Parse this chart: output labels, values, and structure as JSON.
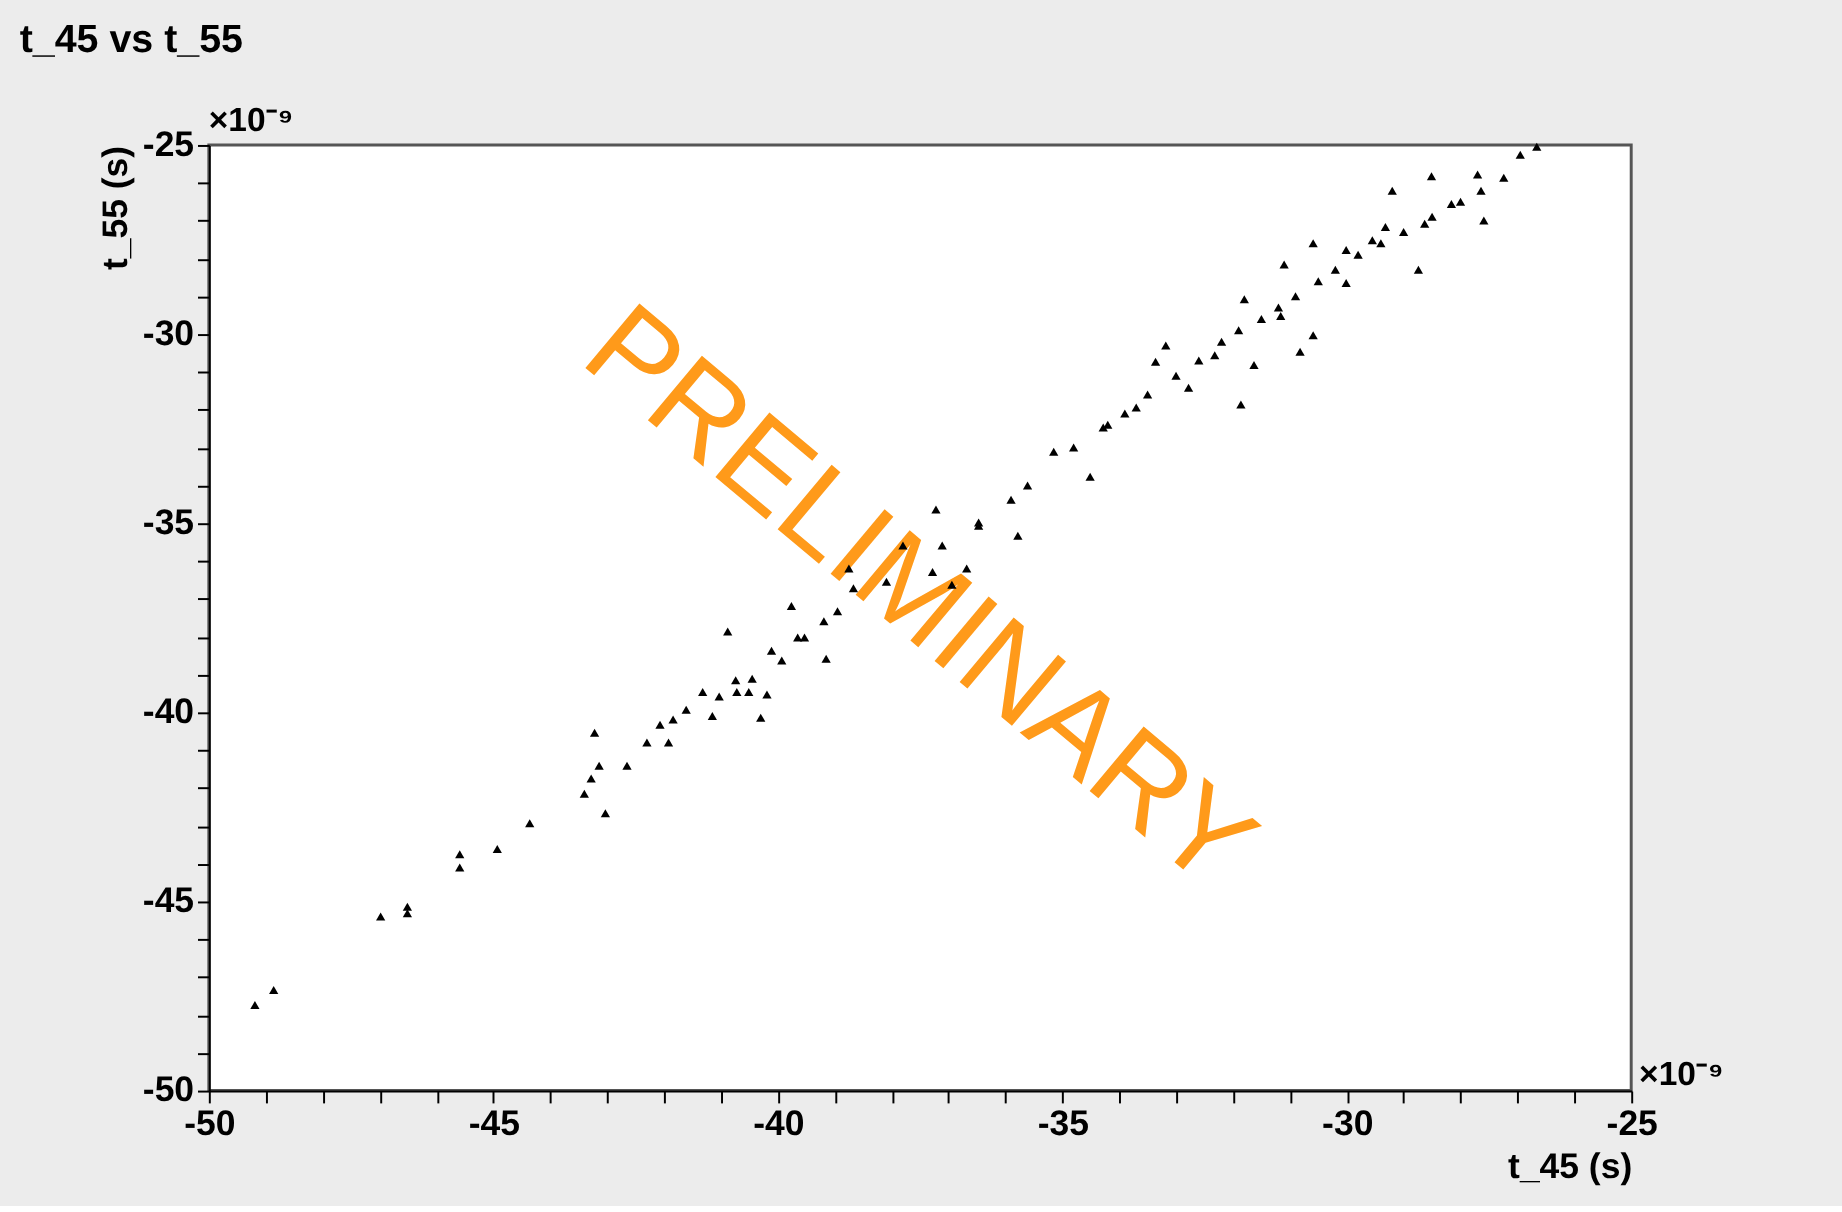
{
  "chart_data": {
    "type": "scatter",
    "title": "t_45  vs t_55",
    "xlabel": "t_45 (s)",
    "ylabel": "t_55 (s)",
    "annotations": [
      "×10⁻⁹",
      "×10⁻⁹",
      "PRELIMINARY"
    ],
    "series": [
      {
        "color": "#000000",
        "marker": "triangle",
        "x": [
          -49.19,
          -48.86,
          -46.98,
          -46.51,
          -46.51,
          -45.59,
          -45.59,
          -44.93,
          -44.36,
          -43.4,
          -43.28,
          -43.14,
          -43.22,
          -43.03,
          -42.65,
          -42.3,
          -42.07,
          -41.92,
          -41.84,
          -41.61,
          -41.32,
          -41.15,
          -41.03,
          -40.88,
          -40.74,
          -40.72,
          -40.45,
          -40.51,
          -40.3,
          -40.19,
          -40.11,
          -39.93,
          -39.76,
          -39.65,
          -39.53,
          -39.19,
          -39.15,
          -38.95,
          -38.75,
          -38.67,
          -38.09,
          -37.8,
          -37.28,
          -37.11,
          -36.94,
          -36.68,
          -36.47,
          -37.22,
          -36.47,
          -35.78,
          -35.9,
          -35.61,
          -35.15,
          -34.51,
          -34.28,
          -33.7,
          -33.36,
          -33.18,
          -32.78,
          -32.32,
          -31.86,
          -31.8,
          -31.63,
          -31.16,
          -31.1,
          -30.82,
          -30.59,
          -30.59,
          -30.01,
          -30.01,
          -29.55,
          -29.32,
          -29.2,
          -28.74,
          -28.63,
          -28.51,
          -28.16,
          -27.7,
          -27.59,
          -27.64,
          -27.24,
          -26.95,
          -26.66,
          -34.8,
          -34.2,
          -33.9,
          -33.5,
          -33.0,
          -32.6,
          -32.2,
          -31.9,
          -31.5,
          -31.2,
          -30.9,
          -30.5,
          -30.2,
          -29.8,
          -29.4,
          -29.0,
          -28.5,
          -28.0
        ],
        "values": [
          -47.74,
          -47.34,
          -45.4,
          -45.14,
          -45.31,
          -43.75,
          -44.1,
          -43.61,
          -42.93,
          -42.15,
          -41.75,
          -41.41,
          -40.54,
          -42.67,
          -41.41,
          -40.8,
          -40.33,
          -40.8,
          -40.19,
          -39.93,
          -39.46,
          -40.1,
          -39.58,
          -37.86,
          -39.15,
          -39.46,
          -39.11,
          -39.46,
          -40.14,
          -39.53,
          -38.37,
          -38.63,
          -37.19,
          -38.02,
          -38.02,
          -37.59,
          -38.58,
          -37.33,
          -36.2,
          -36.72,
          -36.55,
          -35.59,
          -36.29,
          -35.59,
          -36.63,
          -36.2,
          -35.07,
          -34.64,
          -34.98,
          -35.33,
          -34.38,
          -34.0,
          -33.11,
          -33.77,
          -32.47,
          -31.94,
          -30.73,
          -30.3,
          -31.42,
          -30.56,
          -31.86,
          -29.08,
          -30.82,
          -29.52,
          -28.16,
          -30.47,
          -27.6,
          -30.03,
          -28.65,
          -27.78,
          -27.52,
          -27.17,
          -26.21,
          -28.3,
          -27.08,
          -25.83,
          -26.56,
          -25.78,
          -27.0,
          -26.21,
          -25.87,
          -25.26,
          -25.05,
          -33.0,
          -32.4,
          -32.1,
          -31.6,
          -31.1,
          -30.7,
          -30.2,
          -29.9,
          -29.6,
          -29.3,
          -29.0,
          -28.6,
          -28.3,
          -27.9,
          -27.6,
          -27.3,
          -26.9,
          -26.5
        ]
      }
    ],
    "xlim": [
      -50,
      -25
    ],
    "ylim": [
      -50,
      -25
    ],
    "xticks": [
      -50,
      {
        "value": -49,
        "label": null
      },
      {
        "value": -48,
        "label": null
      },
      {
        "value": -47,
        "label": null
      },
      {
        "value": -46,
        "label": null
      },
      -45,
      {
        "value": -44,
        "label": null
      },
      {
        "value": -43,
        "label": null
      },
      {
        "value": -42,
        "label": null
      },
      {
        "value": -41,
        "label": null
      },
      -40,
      {
        "value": -39,
        "label": null
      },
      {
        "value": -38,
        "label": null
      },
      {
        "value": -37,
        "label": null
      },
      {
        "value": -36,
        "label": null
      },
      -35,
      {
        "value": -34,
        "label": null
      },
      {
        "value": -33,
        "label": null
      },
      {
        "value": -32,
        "label": null
      },
      {
        "value": -31,
        "label": null
      },
      -30,
      {
        "value": -29,
        "label": null
      },
      {
        "value": -28,
        "label": null
      },
      {
        "value": -27,
        "label": null
      },
      {
        "value": -26,
        "label": null
      },
      -25
    ],
    "yticks": [
      -50,
      {
        "value": -49,
        "label": null
      },
      {
        "value": -48,
        "label": null
      },
      {
        "value": -47,
        "label": null
      },
      {
        "value": -46,
        "label": null
      },
      -45,
      {
        "value": -44,
        "label": null
      },
      {
        "value": -43,
        "label": null
      },
      {
        "value": -42,
        "label": null
      },
      {
        "value": -41,
        "label": null
      },
      -40,
      {
        "value": -39,
        "label": null
      },
      {
        "value": -38,
        "label": null
      },
      {
        "value": -37,
        "label": null
      },
      {
        "value": -36,
        "label": null
      },
      -35,
      {
        "value": -34,
        "label": null
      },
      {
        "value": -33,
        "label": null
      },
      {
        "value": -32,
        "label": null
      },
      {
        "value": -31,
        "label": null
      },
      -30,
      {
        "value": -29,
        "label": null
      },
      {
        "value": -28,
        "label": null
      },
      {
        "value": -27,
        "label": null
      },
      {
        "value": -26,
        "label": null
      },
      -25
    ],
    "grid": false
  }
}
